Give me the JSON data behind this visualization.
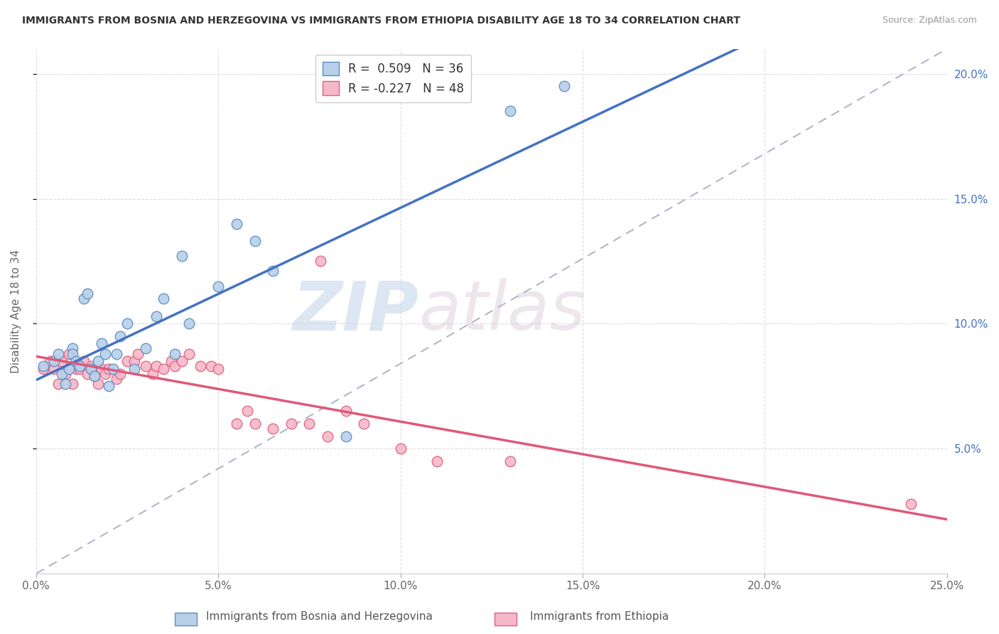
{
  "title": "IMMIGRANTS FROM BOSNIA AND HERZEGOVINA VS IMMIGRANTS FROM ETHIOPIA DISABILITY AGE 18 TO 34 CORRELATION CHART",
  "source": "Source: ZipAtlas.com",
  "ylabel": "Disability Age 18 to 34",
  "xlim": [
    0.0,
    0.25
  ],
  "ylim": [
    0.0,
    0.21
  ],
  "xtick_vals": [
    0.0,
    0.05,
    0.1,
    0.15,
    0.2,
    0.25
  ],
  "xtick_labels": [
    "0.0%",
    "5.0%",
    "10.0%",
    "15.0%",
    "20.0%",
    "25.0%"
  ],
  "ytick_vals": [
    0.05,
    0.1,
    0.15,
    0.2
  ],
  "ytick_labels": [
    "5.0%",
    "10.0%",
    "15.0%",
    "20.0%"
  ],
  "blue_fill": "#b8d0e8",
  "blue_edge": "#5b8dc8",
  "pink_fill": "#f5b8c8",
  "pink_edge": "#e06080",
  "blue_line_color": "#4472c4",
  "pink_line_color": "#e05878",
  "diag_color": "#b0b8c8",
  "legend_r_blue": "R =  0.509",
  "legend_n_blue": "N = 36",
  "legend_r_pink": "R = -0.227",
  "legend_n_pink": "N = 48",
  "blue_x": [
    0.002,
    0.005,
    0.006,
    0.007,
    0.008,
    0.009,
    0.01,
    0.01,
    0.011,
    0.012,
    0.013,
    0.014,
    0.015,
    0.016,
    0.017,
    0.018,
    0.019,
    0.02,
    0.021,
    0.022,
    0.023,
    0.025,
    0.027,
    0.03,
    0.033,
    0.035,
    0.038,
    0.04,
    0.042,
    0.05,
    0.055,
    0.06,
    0.065,
    0.085,
    0.13,
    0.145
  ],
  "blue_y": [
    0.083,
    0.085,
    0.088,
    0.08,
    0.076,
    0.082,
    0.09,
    0.088,
    0.085,
    0.083,
    0.11,
    0.112,
    0.082,
    0.079,
    0.085,
    0.092,
    0.088,
    0.075,
    0.082,
    0.088,
    0.095,
    0.1,
    0.082,
    0.09,
    0.103,
    0.11,
    0.088,
    0.127,
    0.1,
    0.115,
    0.14,
    0.133,
    0.121,
    0.055,
    0.185,
    0.195
  ],
  "pink_x": [
    0.002,
    0.004,
    0.005,
    0.006,
    0.007,
    0.008,
    0.009,
    0.01,
    0.011,
    0.012,
    0.013,
    0.014,
    0.015,
    0.016,
    0.017,
    0.018,
    0.019,
    0.02,
    0.022,
    0.023,
    0.025,
    0.027,
    0.028,
    0.03,
    0.032,
    0.033,
    0.035,
    0.037,
    0.038,
    0.04,
    0.042,
    0.045,
    0.048,
    0.05,
    0.055,
    0.058,
    0.06,
    0.065,
    0.07,
    0.075,
    0.078,
    0.08,
    0.085,
    0.09,
    0.1,
    0.11,
    0.13,
    0.24
  ],
  "pink_y": [
    0.082,
    0.085,
    0.082,
    0.076,
    0.085,
    0.08,
    0.088,
    0.076,
    0.082,
    0.082,
    0.085,
    0.08,
    0.083,
    0.079,
    0.076,
    0.082,
    0.08,
    0.082,
    0.078,
    0.08,
    0.085,
    0.085,
    0.088,
    0.083,
    0.08,
    0.083,
    0.082,
    0.085,
    0.083,
    0.085,
    0.088,
    0.083,
    0.083,
    0.082,
    0.06,
    0.065,
    0.06,
    0.058,
    0.06,
    0.06,
    0.125,
    0.055,
    0.065,
    0.06,
    0.05,
    0.045,
    0.045,
    0.028
  ],
  "watermark_zip": "ZIP",
  "watermark_atlas": "atlas",
  "bottom_label_blue": "Immigrants from Bosnia and Herzegovina",
  "bottom_label_pink": "Immigrants from Ethiopia"
}
